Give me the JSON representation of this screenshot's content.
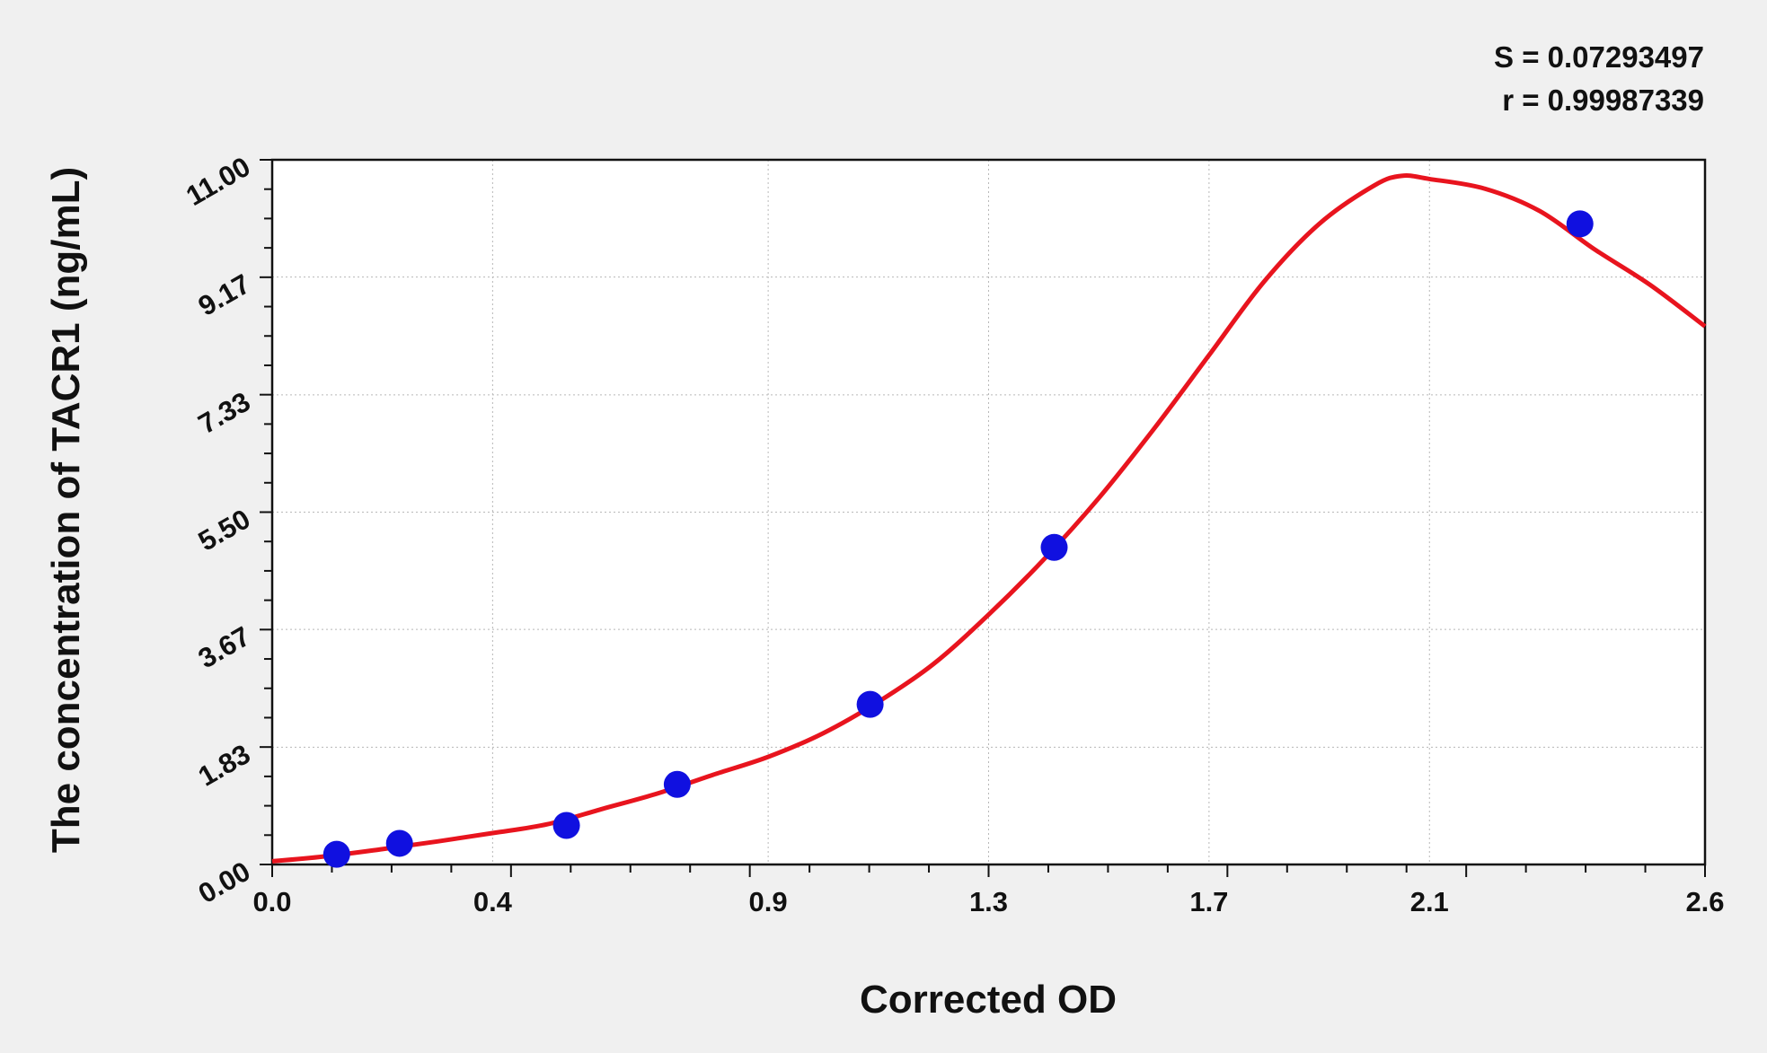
{
  "chart_data": {
    "type": "scatter",
    "xlabel": "Corrected OD",
    "ylabel": "The concentration of TACR1 (ng/mL)",
    "stats": [
      "S = 0.07293497",
      "r = 0.99987339"
    ],
    "xlim": [
      0.0,
      2.6
    ],
    "ylim": [
      0.0,
      11.0
    ],
    "x_ticks": [
      "0.0",
      "0.4",
      "0.9",
      "1.3",
      "1.7",
      "2.1",
      "2.6"
    ],
    "y_ticks": [
      "0.00",
      "1.83",
      "3.67",
      "5.50",
      "7.33",
      "9.17",
      "11.00"
    ],
    "grid": true,
    "series": [
      {
        "kind": "points",
        "color": "#1010e0",
        "x": [
          0.117,
          0.231,
          0.534,
          0.735,
          1.085,
          1.419,
          2.373
        ],
        "y": [
          0.16,
          0.33,
          0.61,
          1.25,
          2.5,
          4.95,
          10.0
        ]
      },
      {
        "kind": "fitted-curve",
        "color": "#e8141e",
        "x": [
          0.0,
          0.1,
          0.2,
          0.3,
          0.4,
          0.5,
          0.6,
          0.7,
          0.8,
          0.9,
          1.0,
          1.1,
          1.2,
          1.3,
          1.4,
          1.5,
          1.6,
          1.7,
          1.8,
          1.9,
          2.0,
          2.05,
          2.1,
          2.2,
          2.3,
          2.4,
          2.5,
          2.6
        ],
        "y": [
          0.05,
          0.13,
          0.24,
          0.36,
          0.49,
          0.63,
          0.87,
          1.11,
          1.4,
          1.68,
          2.05,
          2.54,
          3.13,
          3.9,
          4.76,
          5.72,
          6.8,
          7.95,
          9.1,
          10.0,
          10.6,
          10.75,
          10.7,
          10.55,
          10.2,
          9.6,
          9.05,
          8.4
        ]
      }
    ]
  }
}
